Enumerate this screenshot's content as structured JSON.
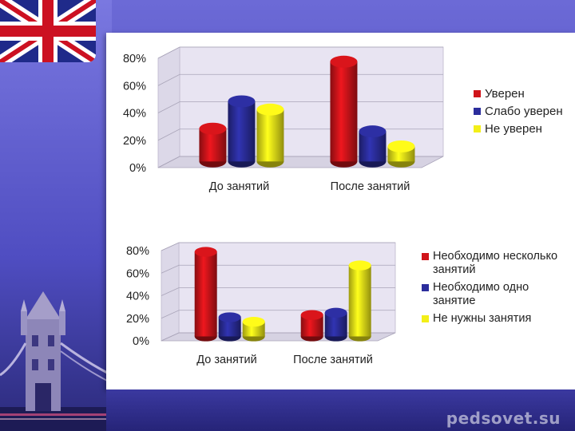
{
  "watermark": "pedsovet.su",
  "colors": {
    "red": "#d0141a",
    "blue": "#2b2d9c",
    "yellow": "#f3ef18"
  },
  "chart_data": [
    {
      "type": "bar",
      "title": "",
      "categories": [
        "До занятий",
        "После занятий"
      ],
      "ylim": [
        0,
        80
      ],
      "yticks": [
        "0%",
        "20%",
        "40%",
        "60%",
        "80%"
      ],
      "series": [
        {
          "name": "Уверен",
          "color": "#d0141a",
          "values": [
            24,
            73
          ]
        },
        {
          "name": "Слабо уверен",
          "color": "#2b2d9c",
          "values": [
            44,
            22
          ]
        },
        {
          "name": "Не уверен",
          "color": "#f3ef18",
          "values": [
            38,
            11
          ]
        }
      ],
      "legend_position": "right"
    },
    {
      "type": "bar",
      "title": "",
      "categories": [
        "До занятий",
        "После занятий"
      ],
      "ylim": [
        0,
        80
      ],
      "yticks": [
        "0%",
        "20%",
        "40%",
        "60%",
        "80%"
      ],
      "series": [
        {
          "name": "Необходимо несколько занятий",
          "color": "#d0141a",
          "values": [
            75,
            19
          ]
        },
        {
          "name": "Необходимо одно занятие",
          "color": "#2b2d9c",
          "values": [
            17,
            21
          ]
        },
        {
          "name": "Не нужны занятия",
          "color": "#f3ef18",
          "values": [
            13,
            63
          ]
        }
      ],
      "legend_position": "right"
    }
  ]
}
